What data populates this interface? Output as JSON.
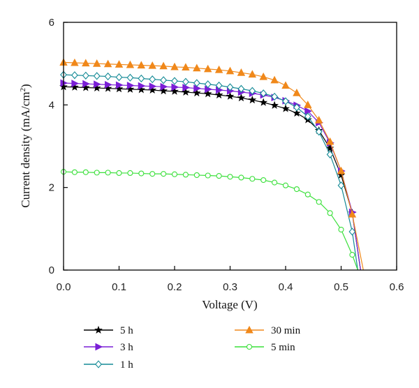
{
  "chart_data": {
    "type": "line",
    "xlabel": "Voltage (V)",
    "ylabel_main": "Current density (mA/cm",
    "ylabel_sup": "2",
    "ylabel_close": ")",
    "xlim": [
      0.0,
      0.6
    ],
    "ylim": [
      0,
      6
    ],
    "xticks": [
      "0.0",
      "0.1",
      "0.2",
      "0.3",
      "0.4",
      "0.5",
      "0.6"
    ],
    "yticks": [
      "0",
      "2",
      "4",
      "6"
    ],
    "legend_position": "below",
    "series": [
      {
        "name": "5 h",
        "color": "#000000",
        "marker": "star",
        "x": [
          0.0,
          0.02,
          0.04,
          0.06,
          0.08,
          0.1,
          0.12,
          0.14,
          0.16,
          0.18,
          0.2,
          0.22,
          0.24,
          0.26,
          0.28,
          0.3,
          0.32,
          0.34,
          0.36,
          0.38,
          0.4,
          0.42,
          0.44,
          0.46,
          0.48,
          0.5,
          0.52,
          0.535
        ],
        "y": [
          4.44,
          4.43,
          4.42,
          4.41,
          4.4,
          4.39,
          4.38,
          4.37,
          4.36,
          4.34,
          4.33,
          4.31,
          4.29,
          4.27,
          4.24,
          4.21,
          4.17,
          4.12,
          4.06,
          3.99,
          3.91,
          3.8,
          3.64,
          3.38,
          2.95,
          2.3,
          1.38,
          0.0
        ]
      },
      {
        "name": "3 h",
        "color": "#7a1fd6",
        "marker": "triangle-right",
        "x": [
          0.0,
          0.02,
          0.04,
          0.06,
          0.08,
          0.1,
          0.12,
          0.14,
          0.16,
          0.18,
          0.2,
          0.22,
          0.24,
          0.26,
          0.28,
          0.3,
          0.32,
          0.34,
          0.36,
          0.38,
          0.4,
          0.42,
          0.44,
          0.46,
          0.48,
          0.5,
          0.52,
          0.535
        ],
        "y": [
          4.53,
          4.52,
          4.51,
          4.5,
          4.49,
          4.48,
          4.47,
          4.46,
          4.45,
          4.44,
          4.43,
          4.42,
          4.4,
          4.38,
          4.36,
          4.34,
          4.31,
          4.28,
          4.24,
          4.18,
          4.1,
          3.99,
          3.85,
          3.57,
          3.08,
          2.4,
          1.4,
          0.0
        ]
      },
      {
        "name": "1 h",
        "color": "#148a96",
        "marker": "diamond",
        "x": [
          0.0,
          0.02,
          0.04,
          0.06,
          0.08,
          0.1,
          0.12,
          0.14,
          0.16,
          0.18,
          0.2,
          0.22,
          0.24,
          0.26,
          0.28,
          0.3,
          0.32,
          0.34,
          0.36,
          0.38,
          0.4,
          0.42,
          0.44,
          0.46,
          0.48,
          0.5,
          0.52,
          0.53
        ],
        "y": [
          4.73,
          4.72,
          4.71,
          4.7,
          4.69,
          4.67,
          4.66,
          4.64,
          4.62,
          4.6,
          4.58,
          4.56,
          4.53,
          4.5,
          4.47,
          4.43,
          4.39,
          4.34,
          4.28,
          4.2,
          4.09,
          3.94,
          3.72,
          3.35,
          2.8,
          2.05,
          0.93,
          0.0
        ]
      },
      {
        "name": "30 min",
        "color": "#f0881a",
        "marker": "triangle-up",
        "x": [
          0.0,
          0.02,
          0.04,
          0.06,
          0.08,
          0.1,
          0.12,
          0.14,
          0.16,
          0.18,
          0.2,
          0.22,
          0.24,
          0.26,
          0.28,
          0.3,
          0.32,
          0.34,
          0.36,
          0.38,
          0.4,
          0.42,
          0.44,
          0.46,
          0.48,
          0.5,
          0.52,
          0.54
        ],
        "y": [
          5.03,
          5.02,
          5.01,
          5.0,
          4.99,
          4.98,
          4.97,
          4.96,
          4.95,
          4.94,
          4.92,
          4.91,
          4.89,
          4.87,
          4.85,
          4.82,
          4.78,
          4.74,
          4.68,
          4.6,
          4.47,
          4.29,
          4.0,
          3.63,
          3.11,
          2.4,
          1.35,
          0.0
        ]
      },
      {
        "name": "5 min",
        "color": "#3ae03a",
        "marker": "circle",
        "x": [
          0.0,
          0.02,
          0.04,
          0.06,
          0.08,
          0.1,
          0.12,
          0.14,
          0.16,
          0.18,
          0.2,
          0.22,
          0.24,
          0.26,
          0.28,
          0.3,
          0.32,
          0.34,
          0.36,
          0.38,
          0.4,
          0.42,
          0.44,
          0.46,
          0.48,
          0.5,
          0.52,
          0.53
        ],
        "y": [
          2.38,
          2.37,
          2.37,
          2.36,
          2.36,
          2.35,
          2.35,
          2.34,
          2.33,
          2.33,
          2.32,
          2.31,
          2.3,
          2.29,
          2.28,
          2.26,
          2.24,
          2.21,
          2.18,
          2.12,
          2.05,
          1.96,
          1.83,
          1.65,
          1.38,
          0.98,
          0.37,
          0.0
        ]
      }
    ]
  }
}
